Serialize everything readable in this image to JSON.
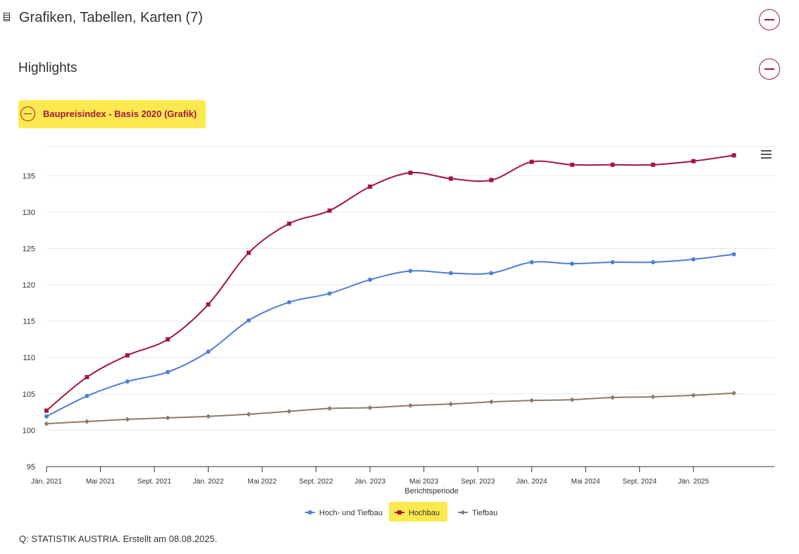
{
  "section": {
    "title": "Grafiken, Tabellen, Karten (7)"
  },
  "highlights": {
    "title": "Highlights"
  },
  "chart_title": "Baupreisindex - Basis 2020 (Grafik)",
  "source": "Q: STATISTIK AUSTRIA. Erstellt am 08.08.2025.",
  "colors": {
    "accent": "#a3163f",
    "highlight": "#fce94f",
    "series1": "#4e7fd1",
    "series2": "#a3163f",
    "series3": "#8a7c6e"
  },
  "chart_data": {
    "type": "line",
    "title": "",
    "xlabel": "Berichtsperiode",
    "ylabel": "",
    "ylim": [
      95,
      139
    ],
    "yticks": [
      95,
      100,
      105,
      110,
      115,
      120,
      125,
      130,
      135
    ],
    "grid": true,
    "legend_position": "bottom",
    "xlim": [
      "2021-01",
      "2025-07"
    ],
    "xticks": [
      "Jän. 2021",
      "Mai 2021",
      "Sept. 2021",
      "Jän. 2022",
      "Mai 2022",
      "Sept. 2022",
      "Jän. 2023",
      "Mai 2023",
      "Sept. 2023",
      "Jän. 2024",
      "Mai 2024",
      "Sept. 2024",
      "Jän. 2025"
    ],
    "x": [
      "2021-01",
      "2021-04",
      "2021-07",
      "2021-10",
      "2022-01",
      "2022-04",
      "2022-07",
      "2022-10",
      "2023-01",
      "2023-04",
      "2023-07",
      "2023-10",
      "2024-01",
      "2024-04",
      "2024-07",
      "2024-10",
      "2025-01",
      "2025-04"
    ],
    "series": [
      {
        "name": "Hoch- und Tiefbau",
        "marker": "circle",
        "values": [
          101.9,
          104.7,
          106.7,
          108.0,
          110.8,
          115.1,
          117.6,
          118.8,
          120.7,
          121.9,
          121.6,
          121.6,
          123.1,
          122.9,
          123.1,
          123.1,
          123.5,
          124.2
        ]
      },
      {
        "name": "Hochbau",
        "marker": "square",
        "values": [
          102.7,
          107.3,
          110.3,
          112.5,
          117.3,
          124.4,
          128.4,
          130.2,
          133.5,
          135.4,
          134.6,
          134.4,
          136.9,
          136.5,
          136.5,
          136.5,
          137.0,
          137.8
        ]
      },
      {
        "name": "Tiefbau",
        "marker": "diamond",
        "values": [
          100.9,
          101.2,
          101.5,
          101.7,
          101.9,
          102.2,
          102.6,
          103.0,
          103.1,
          103.4,
          103.6,
          103.9,
          104.1,
          104.2,
          104.5,
          104.6,
          104.8,
          105.1
        ]
      }
    ]
  }
}
